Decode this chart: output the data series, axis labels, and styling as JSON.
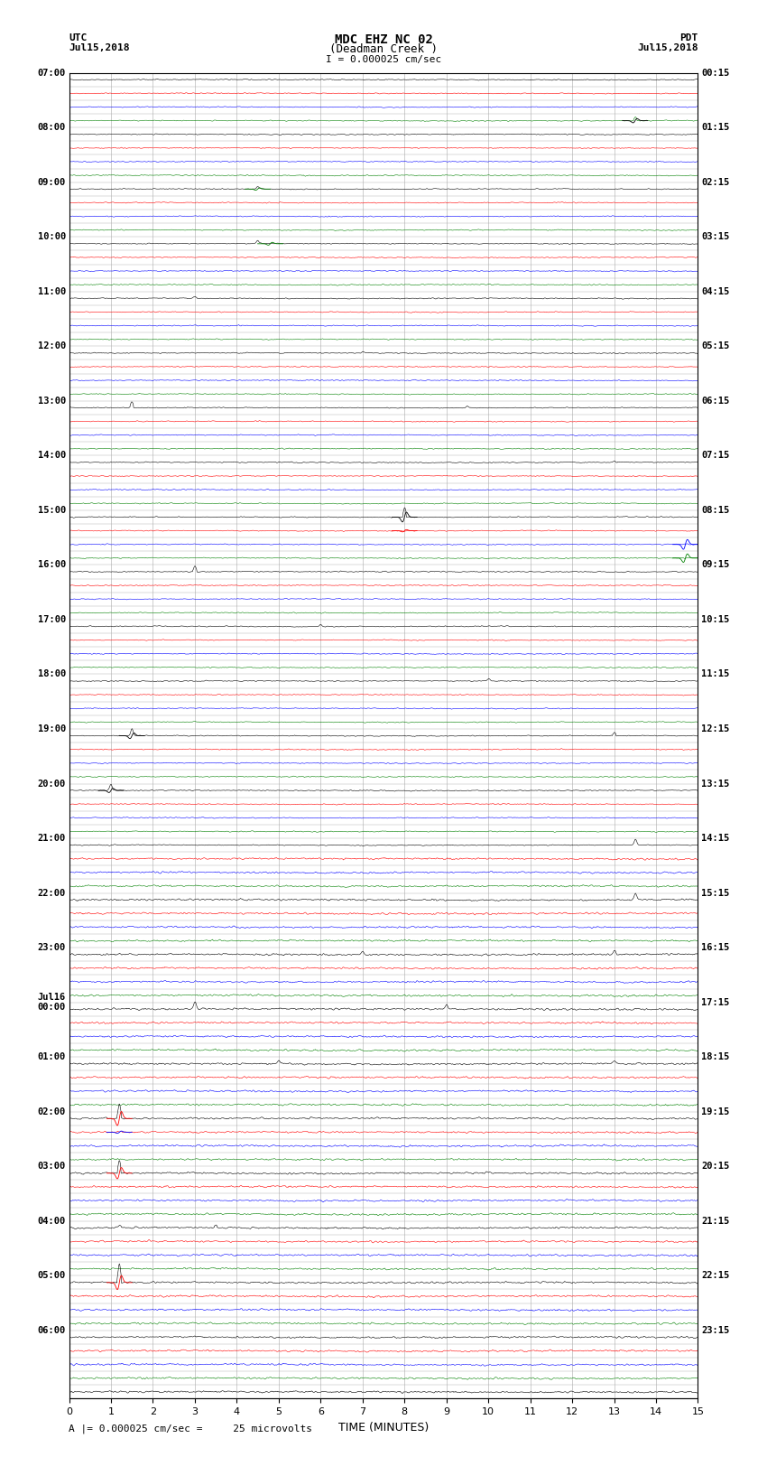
{
  "title_line1": "MDC EHZ NC 02",
  "title_line2": "(Deadman Creek )",
  "title_line3": "I = 0.000025 cm/sec",
  "label_utc": "UTC",
  "label_pdt": "PDT",
  "date_left": "Jul15,2018",
  "date_right": "Jul15,2018",
  "xlabel": "TIME (MINUTES)",
  "footer": "A |= 0.000025 cm/sec =     25 microvolts",
  "xlim": [
    0,
    15
  ],
  "seed": 42,
  "left_times": [
    "07:00",
    "",
    "",
    "",
    "08:00",
    "",
    "",
    "",
    "09:00",
    "",
    "",
    "",
    "10:00",
    "",
    "",
    "",
    "11:00",
    "",
    "",
    "",
    "12:00",
    "",
    "",
    "",
    "13:00",
    "",
    "",
    "",
    "14:00",
    "",
    "",
    "",
    "15:00",
    "",
    "",
    "",
    "16:00",
    "",
    "",
    "",
    "17:00",
    "",
    "",
    "",
    "18:00",
    "",
    "",
    "",
    "19:00",
    "",
    "",
    "",
    "20:00",
    "",
    "",
    "",
    "21:00",
    "",
    "",
    "",
    "22:00",
    "",
    "",
    "",
    "23:00",
    "",
    "",
    "",
    "Jul16\n00:00",
    "",
    "",
    "",
    "01:00",
    "",
    "",
    "",
    "02:00",
    "",
    "",
    "",
    "03:00",
    "",
    "",
    "",
    "04:00",
    "",
    "",
    "",
    "05:00",
    "",
    "",
    "",
    "06:00",
    "",
    "",
    "",
    ""
  ],
  "right_times": [
    "00:15",
    "",
    "",
    "",
    "01:15",
    "",
    "",
    "",
    "02:15",
    "",
    "",
    "",
    "03:15",
    "",
    "",
    "",
    "04:15",
    "",
    "",
    "",
    "05:15",
    "",
    "",
    "",
    "06:15",
    "",
    "",
    "",
    "07:15",
    "",
    "",
    "",
    "08:15",
    "",
    "",
    "",
    "09:15",
    "",
    "",
    "",
    "10:15",
    "",
    "",
    "",
    "11:15",
    "",
    "",
    "",
    "12:15",
    "",
    "",
    "",
    "13:15",
    "",
    "",
    "",
    "14:15",
    "",
    "",
    "",
    "15:15",
    "",
    "",
    "",
    "16:15",
    "",
    "",
    "",
    "17:15",
    "",
    "",
    "",
    "18:15",
    "",
    "",
    "",
    "19:15",
    "",
    "",
    "",
    "20:15",
    "",
    "",
    "",
    "21:15",
    "",
    "",
    "",
    "22:15",
    "",
    "",
    "",
    "23:15",
    "",
    "",
    "",
    ""
  ],
  "colors_cycle": [
    "black",
    "red",
    "blue",
    "green"
  ]
}
